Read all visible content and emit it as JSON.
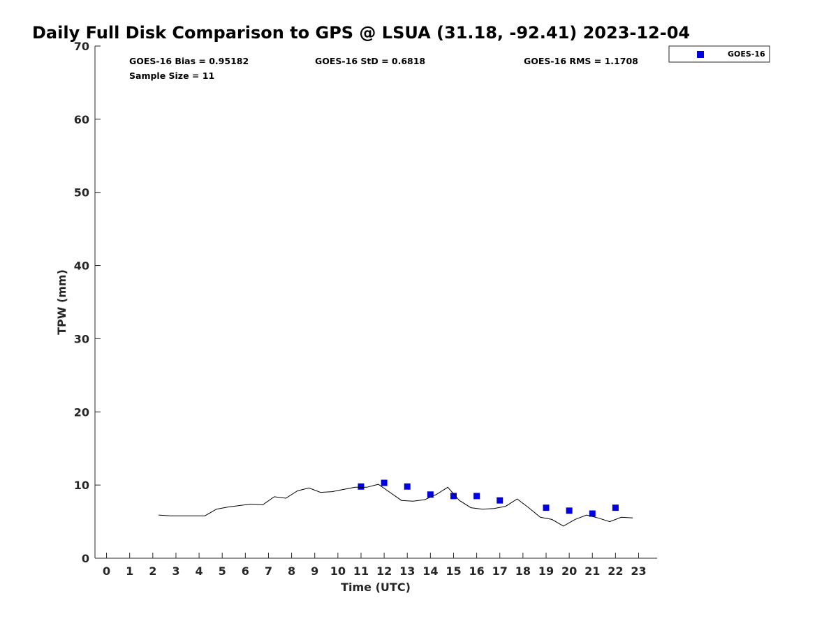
{
  "chart_data": {
    "type": "scatter",
    "title": "Daily Full Disk Comparison to GPS @ LSUA (31.18, -92.41) 2023-12-04",
    "xlabel": "Time (UTC)",
    "ylabel": "TPW (mm)",
    "xlim": [
      -0.5,
      23.8
    ],
    "ylim": [
      0,
      70
    ],
    "x_ticks": [
      "0",
      "1",
      "2",
      "3",
      "4",
      "5",
      "6",
      "7",
      "8",
      "9",
      "10",
      "11",
      "12",
      "13",
      "14",
      "15",
      "16",
      "17",
      "18",
      "19",
      "20",
      "21",
      "22",
      "23"
    ],
    "y_ticks": [
      "0",
      "10",
      "20",
      "30",
      "40",
      "50",
      "60",
      "70"
    ],
    "grid": false,
    "legend_position": "top-right",
    "stats": {
      "bias": "GOES-16 Bias = 0.95182",
      "std": "GOES-16 StD = 0.6818",
      "rms": "GOES-16 RMS = 1.1708",
      "sample_size": "Sample Size = 11"
    },
    "series": [
      {
        "name": "GOES-16",
        "kind": "scatter",
        "color": "#0000e0",
        "marker": "square",
        "x": [
          11,
          12,
          13,
          14,
          15,
          16,
          17,
          19,
          20,
          21,
          22
        ],
        "y": [
          9.8,
          10.3,
          9.8,
          8.7,
          8.5,
          8.5,
          7.9,
          6.9,
          6.5,
          6.1,
          6.9
        ]
      },
      {
        "kind": "line",
        "color": "#000000",
        "x": [
          2.25,
          2.75,
          3.25,
          3.75,
          4.25,
          4.75,
          5.25,
          5.75,
          6.25,
          6.75,
          7.25,
          7.75,
          8.25,
          8.75,
          9.25,
          9.75,
          10.25,
          10.75,
          11.25,
          11.75,
          12.25,
          12.75,
          13.25,
          13.75,
          14.25,
          14.75,
          15.25,
          15.75,
          16.25,
          16.75,
          17.25,
          17.75,
          18.25,
          18.75,
          19.25,
          19.75,
          20.25,
          20.75,
          21.25,
          21.75,
          22.25,
          22.75
        ],
        "y": [
          5.9,
          5.8,
          5.8,
          5.8,
          5.8,
          6.7,
          7.0,
          7.2,
          7.4,
          7.3,
          8.4,
          8.2,
          9.2,
          9.6,
          9.0,
          9.1,
          9.4,
          9.7,
          9.7,
          10.1,
          9.0,
          7.9,
          7.8,
          8.0,
          8.7,
          9.7,
          7.9,
          6.9,
          6.7,
          6.8,
          7.1,
          8.1,
          6.9,
          5.6,
          5.3,
          4.4,
          5.3,
          5.9,
          5.5,
          5.0,
          5.6,
          5.5
        ]
      }
    ]
  }
}
